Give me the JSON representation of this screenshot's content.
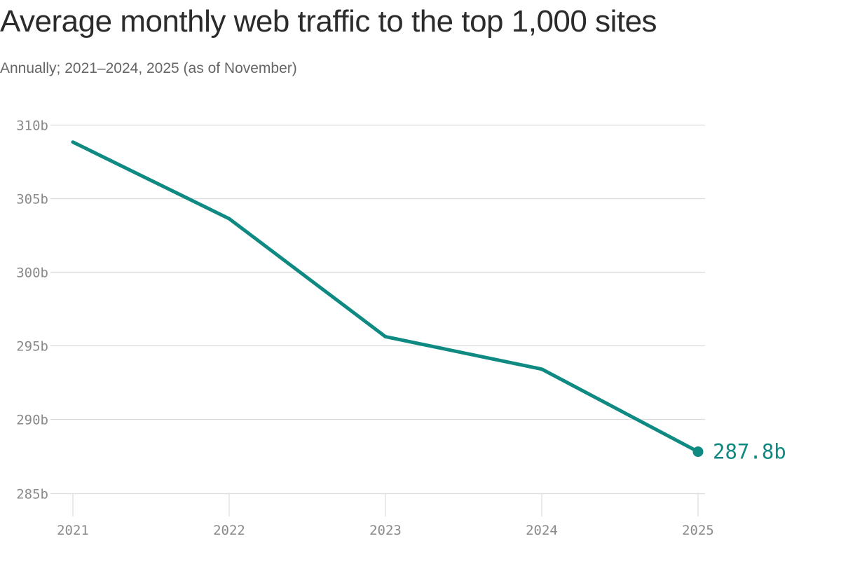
{
  "chart_data": {
    "type": "line",
    "title": "Average monthly web traffic to the top 1,000 sites",
    "subtitle": "Annually; 2021–2024, 2025 (as of November)",
    "xlabel": "",
    "ylabel": "",
    "x": [
      "2021",
      "2022",
      "2023",
      "2024",
      "2025"
    ],
    "series": [
      {
        "values": [
          308.8,
          303.6,
          295.6,
          293.4,
          287.8
        ]
      }
    ],
    "ylim": [
      285,
      310
    ],
    "y_ticks": [
      310,
      305,
      300,
      295,
      290,
      285
    ],
    "y_tick_labels": [
      "310b",
      "305b",
      "300b",
      "295b",
      "290b",
      "285b"
    ],
    "end_label": "287.8b",
    "grid": true,
    "colors": {
      "line": "#0e8a82",
      "grid": "#dcdcdc",
      "tick_text": "#8a8a8a"
    }
  }
}
